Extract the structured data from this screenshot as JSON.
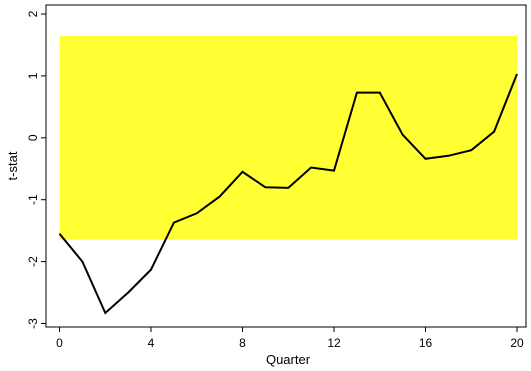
{
  "chart_data": {
    "type": "line",
    "title": "",
    "xlabel": "Quarter",
    "ylabel": "t-stat",
    "xlim": [
      0,
      20
    ],
    "ylim": [
      -3,
      2
    ],
    "x_ticks": [
      0,
      4,
      8,
      12,
      16,
      20
    ],
    "x_tick_labels": [
      "0",
      "4",
      "8",
      "12",
      "16",
      "20"
    ],
    "y_ticks": [
      -3,
      -2,
      -1,
      0,
      1,
      2
    ],
    "y_tick_labels": [
      "-3",
      "-2",
      "-1",
      "0",
      "1",
      "2"
    ],
    "grid": false,
    "legend": "none",
    "band": {
      "y_low": -1.645,
      "y_high": 1.645,
      "color": "#ffff33"
    },
    "line_color": "#000000",
    "series": [
      {
        "x": [
          0,
          1,
          2,
          3,
          4,
          5,
          6,
          7,
          8,
          9,
          10,
          11,
          12,
          13,
          14,
          15,
          16,
          17,
          18,
          19,
          20
        ],
        "values": [
          -1.55,
          -2.0,
          -2.83,
          -2.5,
          -2.13,
          -1.37,
          -1.22,
          -0.95,
          -0.55,
          -0.8,
          -0.81,
          -0.48,
          -0.53,
          0.73,
          0.73,
          0.05,
          -0.34,
          -0.29,
          -0.2,
          0.1,
          1.03
        ]
      }
    ]
  }
}
